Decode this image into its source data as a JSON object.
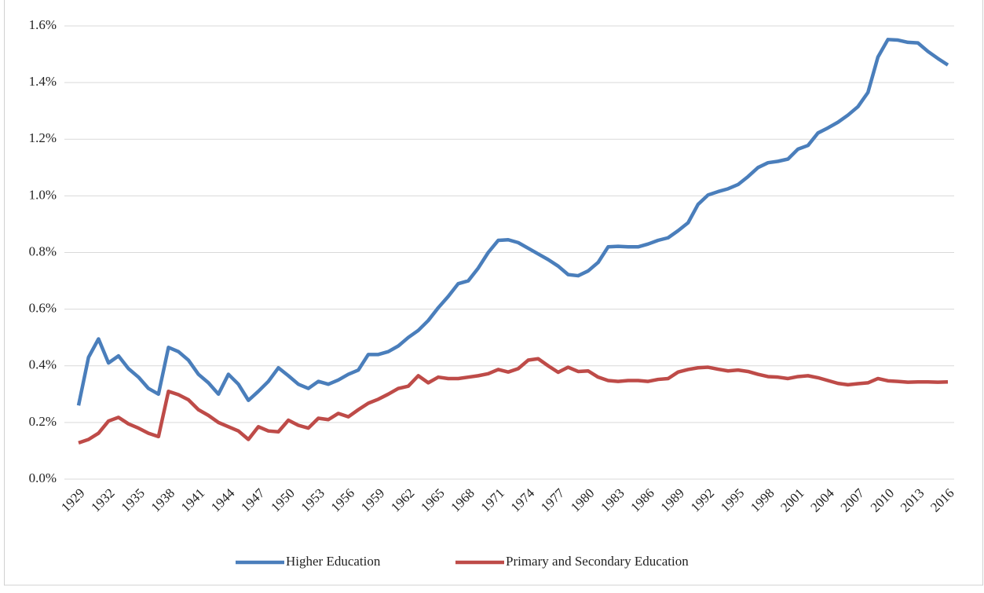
{
  "chart_data": {
    "type": "line",
    "x": [
      1929,
      1930,
      1931,
      1932,
      1933,
      1934,
      1935,
      1936,
      1937,
      1938,
      1939,
      1940,
      1941,
      1942,
      1943,
      1944,
      1945,
      1946,
      1947,
      1948,
      1949,
      1950,
      1951,
      1952,
      1953,
      1954,
      1955,
      1956,
      1957,
      1958,
      1959,
      1960,
      1961,
      1962,
      1963,
      1964,
      1965,
      1966,
      1967,
      1968,
      1969,
      1970,
      1971,
      1972,
      1973,
      1974,
      1975,
      1976,
      1977,
      1978,
      1979,
      1980,
      1981,
      1982,
      1983,
      1984,
      1985,
      1986,
      1987,
      1988,
      1989,
      1990,
      1991,
      1992,
      1993,
      1994,
      1995,
      1996,
      1997,
      1998,
      1999,
      2000,
      2001,
      2002,
      2003,
      2004,
      2005,
      2006,
      2007,
      2008,
      2009,
      2010,
      2011,
      2012,
      2013,
      2014,
      2015,
      2016
    ],
    "xlim": [
      1929,
      2016
    ],
    "xticks": [
      1929,
      1932,
      1935,
      1938,
      1941,
      1944,
      1947,
      1950,
      1953,
      1956,
      1959,
      1962,
      1965,
      1968,
      1971,
      1974,
      1977,
      1980,
      1983,
      1986,
      1989,
      1992,
      1995,
      1998,
      2001,
      2004,
      2007,
      2010,
      2013,
      2016
    ],
    "ylim": [
      0,
      1.6
    ],
    "yticks": [
      {
        "value": 0,
        "label": "0.0%"
      },
      {
        "value": 0.2,
        "label": "0.2%"
      },
      {
        "value": 0.4,
        "label": "0.4%"
      },
      {
        "value": 0.6,
        "label": "0.6%"
      },
      {
        "value": 0.8,
        "label": "0.8%"
      },
      {
        "value": 1.0,
        "label": "1.0%"
      },
      {
        "value": 1.2,
        "label": "1.2%"
      },
      {
        "value": 1.4,
        "label": "1.4%"
      },
      {
        "value": 1.6,
        "label": "1.6%"
      }
    ],
    "grid": true,
    "legend": "bottom",
    "series": [
      {
        "name": "Higher Education",
        "color": "#4a7ebb",
        "values": [
          0.26,
          0.43,
          0.495,
          0.41,
          0.435,
          0.39,
          0.36,
          0.32,
          0.3,
          0.465,
          0.45,
          0.42,
          0.37,
          0.34,
          0.3,
          0.37,
          0.335,
          0.278,
          0.31,
          0.345,
          0.393,
          0.365,
          0.335,
          0.32,
          0.345,
          0.335,
          0.35,
          0.37,
          0.385,
          0.44,
          0.44,
          0.45,
          0.47,
          0.5,
          0.525,
          0.56,
          0.605,
          0.645,
          0.69,
          0.7,
          0.745,
          0.8,
          0.843,
          0.845,
          0.835,
          0.815,
          0.795,
          0.775,
          0.752,
          0.722,
          0.718,
          0.735,
          0.765,
          0.82,
          0.822,
          0.82,
          0.82,
          0.83,
          0.843,
          0.852,
          0.877,
          0.905,
          0.97,
          1.003,
          1.015,
          1.025,
          1.04,
          1.068,
          1.1,
          1.117,
          1.122,
          1.13,
          1.165,
          1.178,
          1.222,
          1.24,
          1.26,
          1.285,
          1.315,
          1.365,
          1.49,
          1.552,
          1.55,
          1.542,
          1.54,
          1.51,
          1.485,
          1.462
        ]
      },
      {
        "name": "Primary and Secondary Education",
        "color": "#be4b48",
        "values": [
          0.128,
          0.14,
          0.162,
          0.205,
          0.218,
          0.195,
          0.18,
          0.162,
          0.15,
          0.31,
          0.298,
          0.28,
          0.245,
          0.225,
          0.2,
          0.185,
          0.17,
          0.14,
          0.185,
          0.17,
          0.167,
          0.208,
          0.19,
          0.18,
          0.215,
          0.21,
          0.232,
          0.22,
          0.245,
          0.268,
          0.282,
          0.3,
          0.32,
          0.328,
          0.365,
          0.34,
          0.36,
          0.355,
          0.355,
          0.36,
          0.365,
          0.372,
          0.387,
          0.378,
          0.39,
          0.42,
          0.425,
          0.4,
          0.377,
          0.395,
          0.38,
          0.382,
          0.36,
          0.348,
          0.345,
          0.348,
          0.348,
          0.345,
          0.352,
          0.355,
          0.378,
          0.387,
          0.393,
          0.395,
          0.388,
          0.382,
          0.385,
          0.38,
          0.37,
          0.362,
          0.36,
          0.355,
          0.362,
          0.365,
          0.358,
          0.348,
          0.338,
          0.333,
          0.337,
          0.34,
          0.355,
          0.347,
          0.345,
          0.342,
          0.343,
          0.343,
          0.342,
          0.343
        ]
      }
    ]
  }
}
